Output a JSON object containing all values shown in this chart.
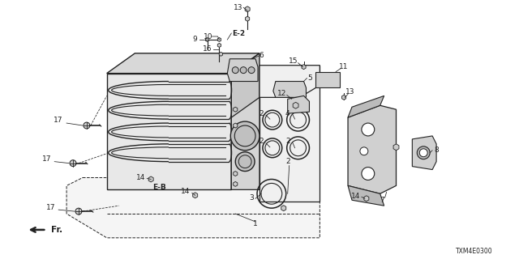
{
  "background_color": "#ffffff",
  "diagram_number": "TXM4E0300",
  "fig_width": 6.4,
  "fig_height": 3.2,
  "dpi": 100,
  "line_color": "#222222",
  "fill_light": "#e8e8e8",
  "fill_mid": "#d0d0d0",
  "fill_dark": "#bbbbbb"
}
